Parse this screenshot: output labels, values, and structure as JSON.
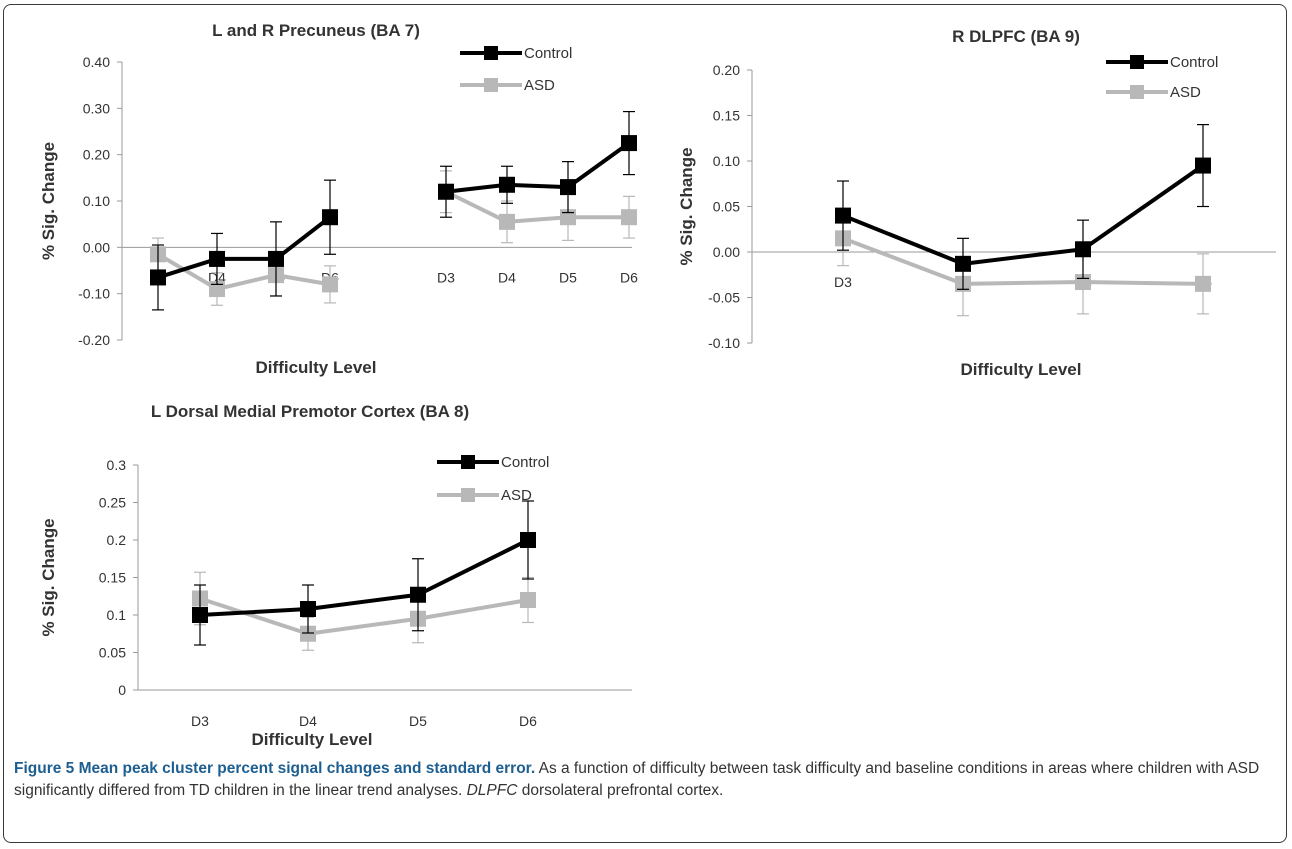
{
  "caption": {
    "label": "Figure 5",
    "title": "Mean peak cluster percent signal changes and standard error.",
    "text": "As a function of difficulty between task difficulty and baseline conditions in areas where children with ASD significantly differed from TD children in the linear trend analyses.",
    "abbr": "DLPFC",
    "abbr_def": "dorsolateral prefrontal cortex."
  },
  "colors": {
    "control": "#000000",
    "asd": "#b8b8b8",
    "axis": "#9a9a9a",
    "text": "#333333"
  },
  "chart_data": [
    {
      "id": "precuneus",
      "type": "line",
      "title": "L and R Precuneus (BA 7)",
      "xlabel": "Difficulty Level",
      "ylabel": "% Sig. Change",
      "ylim": [
        -0.2,
        0.4
      ],
      "yticks": [
        "-0.20",
        "-0.10",
        "0.00",
        "0.10",
        "0.20",
        "0.30",
        "0.40"
      ],
      "legend": "top-right",
      "groups": [
        {
          "categories": [
            "D3",
            "D4",
            "D5",
            "D6"
          ],
          "tick_labels": [
            "",
            "D4",
            "D5",
            "D6"
          ]
        },
        {
          "categories": [
            "D3",
            "D4",
            "D5",
            "D6"
          ],
          "tick_labels": [
            "D3",
            "D4",
            "D5",
            "D6"
          ]
        }
      ],
      "series": [
        {
          "name": "Control",
          "groups": [
            {
              "values": [
                -0.065,
                -0.025,
                -0.025,
                0.065
              ],
              "errors": [
                0.07,
                0.055,
                0.08,
                0.08
              ]
            },
            {
              "values": [
                0.12,
                0.135,
                0.13,
                0.225
              ],
              "errors": [
                0.055,
                0.04,
                0.055,
                0.068
              ]
            }
          ]
        },
        {
          "name": "ASD",
          "groups": [
            {
              "values": [
                -0.015,
                -0.09,
                -0.06,
                -0.08
              ],
              "errors": [
                0.035,
                0.035,
                0.045,
                0.04
              ]
            },
            {
              "values": [
                0.12,
                0.055,
                0.065,
                0.065
              ],
              "errors": [
                0.045,
                0.045,
                0.05,
                0.045
              ]
            }
          ]
        }
      ]
    },
    {
      "id": "dlpfc",
      "type": "line",
      "title": "R DLPFC (BA  9)",
      "xlabel": "Difficulty Level",
      "ylabel": "% Sig. Change",
      "ylim": [
        -0.1,
        0.2
      ],
      "yticks": [
        "-0.10",
        "-0.05",
        "0.00",
        "0.05",
        "0.10",
        "0.15",
        "0.20"
      ],
      "legend": "top-right",
      "categories": [
        "D3",
        "D4",
        "D5",
        "D6"
      ],
      "series": [
        {
          "name": "Control",
          "values": [
            0.04,
            -0.013,
            0.003,
            0.095
          ],
          "errors": [
            0.038,
            0.028,
            0.032,
            0.045
          ]
        },
        {
          "name": "ASD",
          "values": [
            0.015,
            -0.035,
            -0.033,
            -0.035
          ],
          "errors": [
            0.03,
            0.035,
            0.035,
            0.033
          ]
        }
      ]
    },
    {
      "id": "premotor",
      "type": "line",
      "title": "L Dorsal Medial Premotor Cortex (BA 8)",
      "xlabel": "Difficulty Level",
      "ylabel": "% Sig. Change",
      "ylim": [
        0,
        0.3
      ],
      "yticks": [
        "0",
        "0.05",
        "0.1",
        "0.15",
        "0.2",
        "0.25",
        "0.3"
      ],
      "legend": "top-right",
      "categories": [
        "D3",
        "D4",
        "D5",
        "D6"
      ],
      "series": [
        {
          "name": "Control",
          "values": [
            0.1,
            0.108,
            0.127,
            0.2
          ],
          "errors": [
            0.04,
            0.032,
            0.048,
            0.052
          ]
        },
        {
          "name": "ASD",
          "values": [
            0.122,
            0.075,
            0.095,
            0.12
          ],
          "errors": [
            0.035,
            0.022,
            0.032,
            0.03
          ]
        }
      ]
    }
  ]
}
